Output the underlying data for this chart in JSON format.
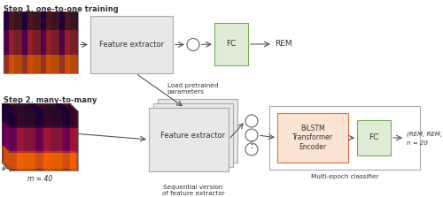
{
  "title_step1": "Step 1. one-to-one training",
  "title_step2": "Step 2. many-to-many",
  "bg_color": "#ffffff",
  "box_feature_extractor_color": "#e8e8e8",
  "box_feature_extractor_edge": "#aaaaaa",
  "box_fc_color": "#deecd6",
  "box_fc_edge": "#7aaa5a",
  "box_bilstm_color": "#fce4d4",
  "box_bilstm_edge": "#e07040",
  "box_multiepoch_edge": "#aaaaaa",
  "arrow_color": "#555555",
  "text_color": "#333333",
  "label_m": "m = 40",
  "label_n": "n = 20",
  "label_rem1": "REM",
  "label_rem2": "(REM, REM, …, Light)",
  "label_sequential": "Sequential version\nof feature extractor",
  "label_multiepoch": "Multi-epoch classifier",
  "label_load": "Load pretrained\nparameters",
  "label_feature": "Feature extractor",
  "label_bilstm": "BiLSTM\nTransformer\nEncoder",
  "label_fc": "FC",
  "spec1_cols": 28,
  "spec2_cols": 20,
  "spec_colors_dark": [
    "#1a0030",
    "#2a0050",
    "#3a0070"
  ],
  "spec_colors_mid": [
    "#8b0050",
    "#cc3300",
    "#dd5500"
  ],
  "spec_colors_bright": [
    "#ff8800",
    "#ffaa00",
    "#ffcc00"
  ]
}
